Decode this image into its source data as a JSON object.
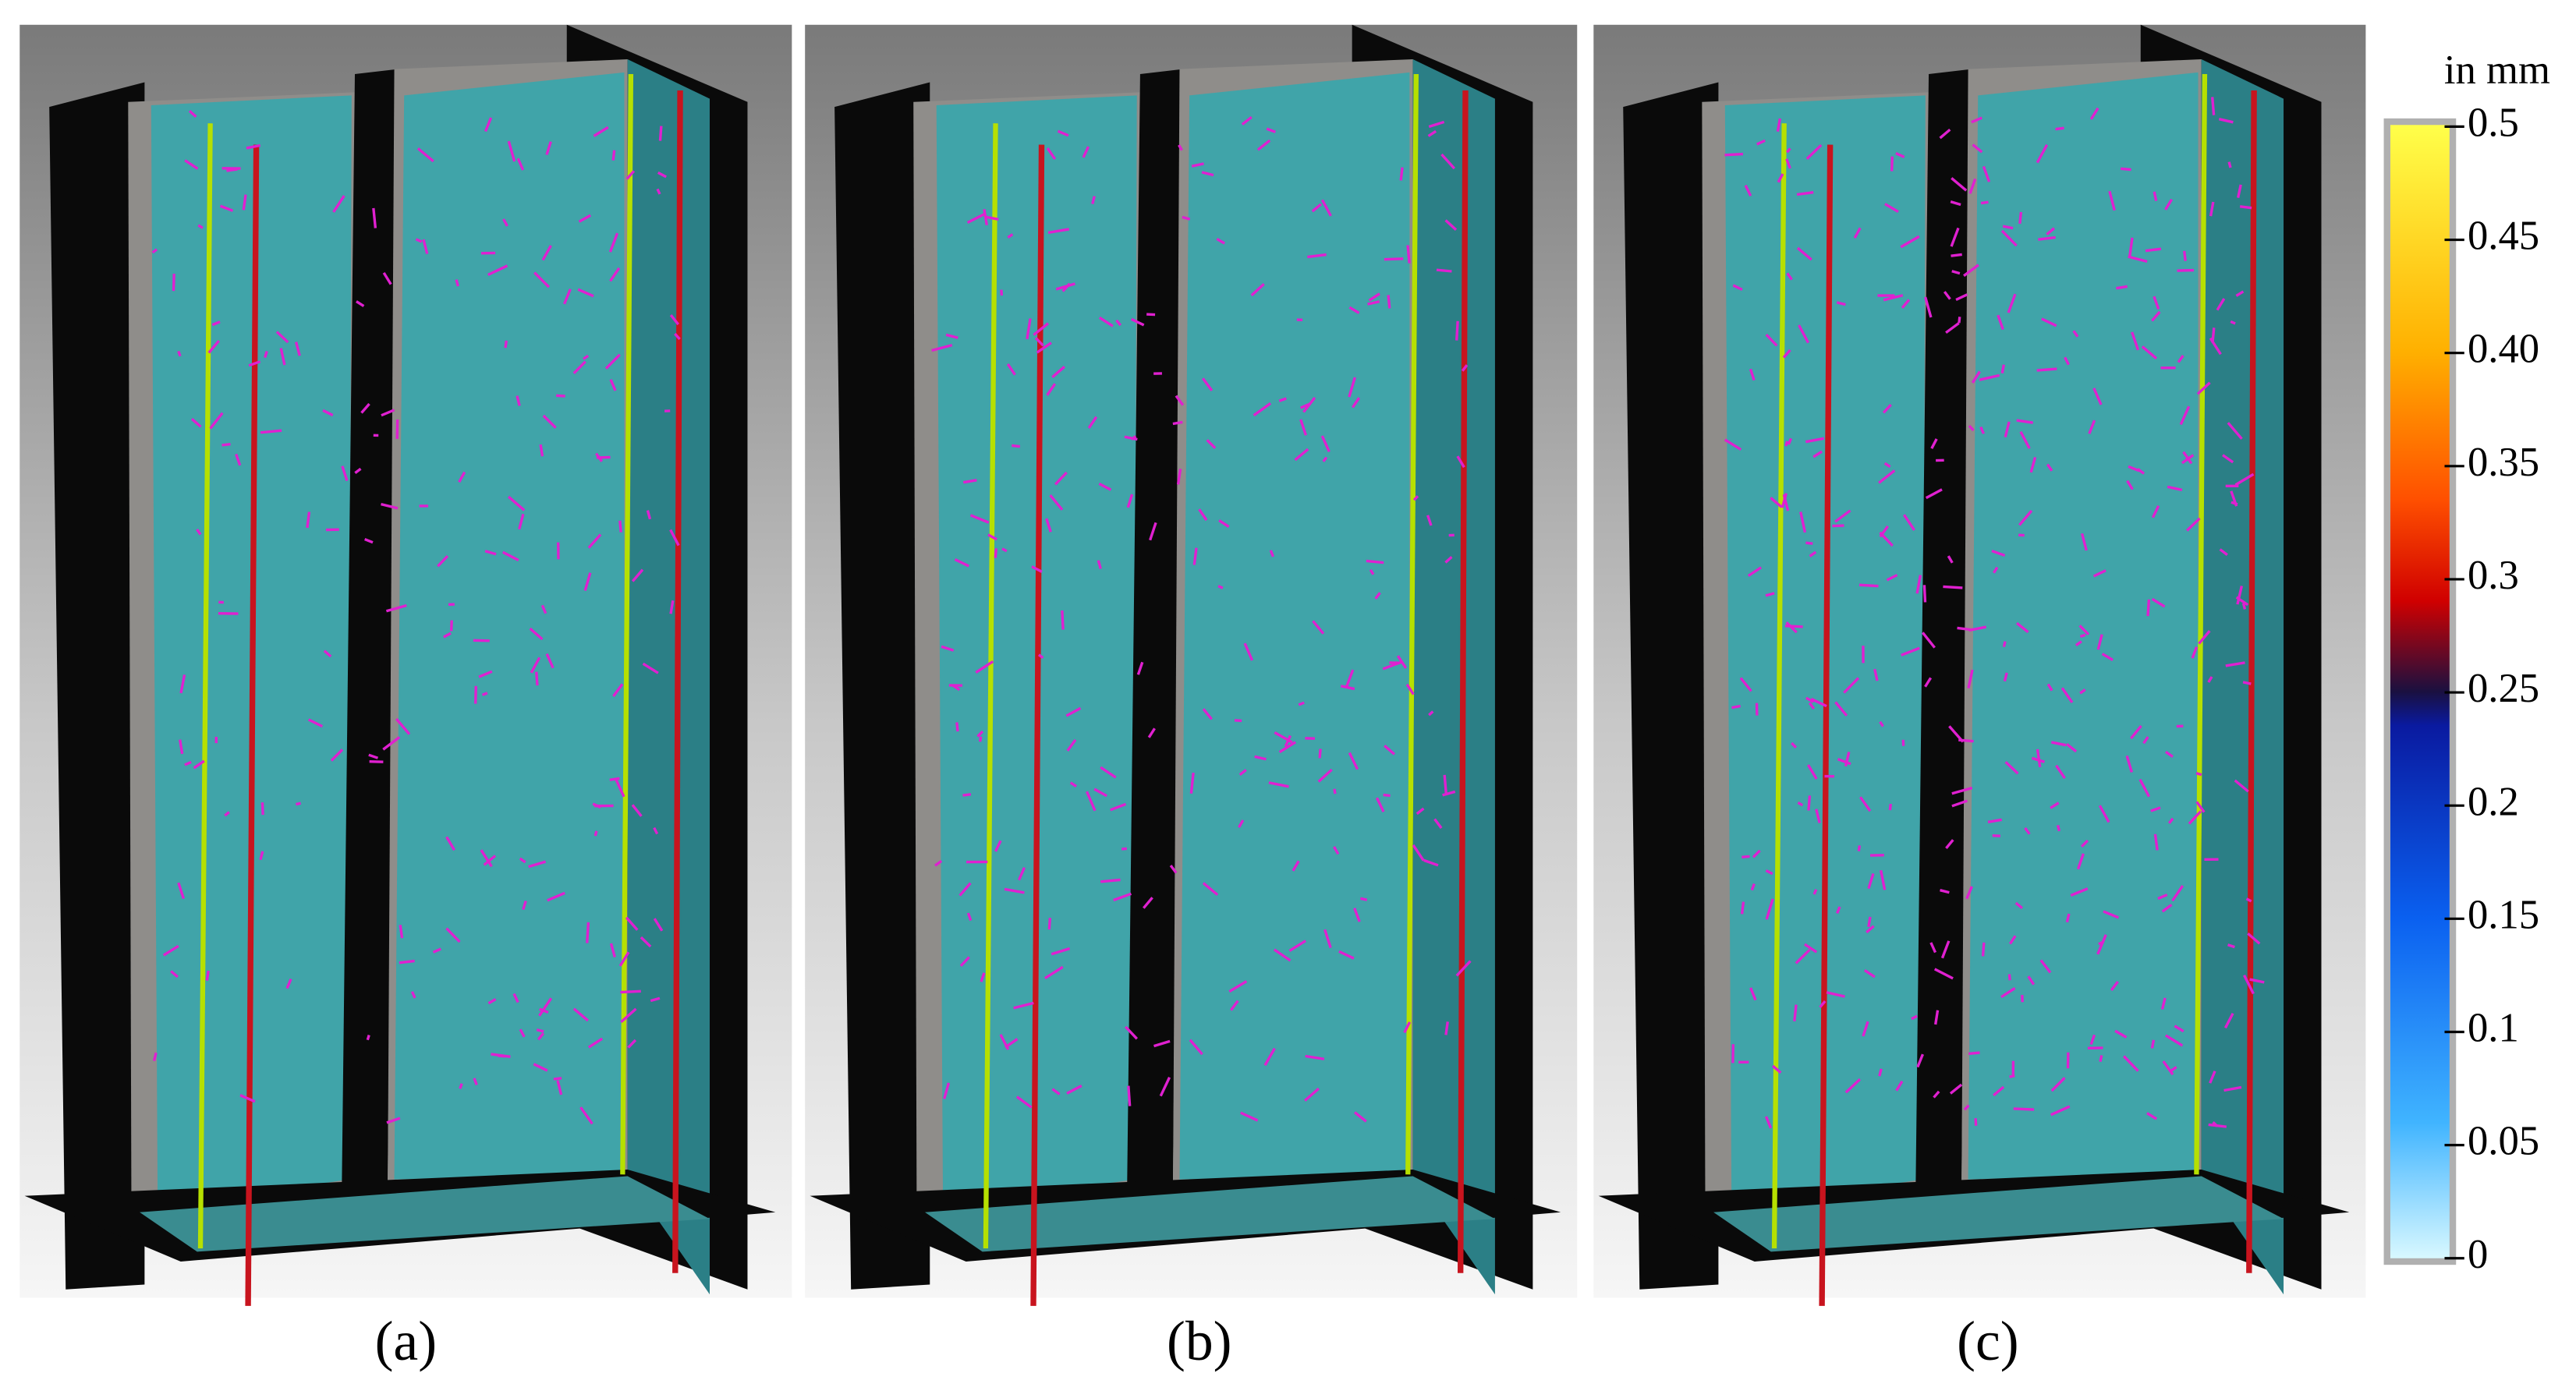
{
  "panels": [
    {
      "label": "(a)"
    },
    {
      "label": "(b)"
    },
    {
      "label": "(c)"
    }
  ],
  "colorbar": {
    "title": "in mm",
    "ticks": [
      "0.5",
      "0.45",
      "0.40",
      "0.35",
      "0.3",
      "0.25",
      "0.2",
      "0.15",
      "0.1",
      "0.05",
      "0"
    ]
  }
}
